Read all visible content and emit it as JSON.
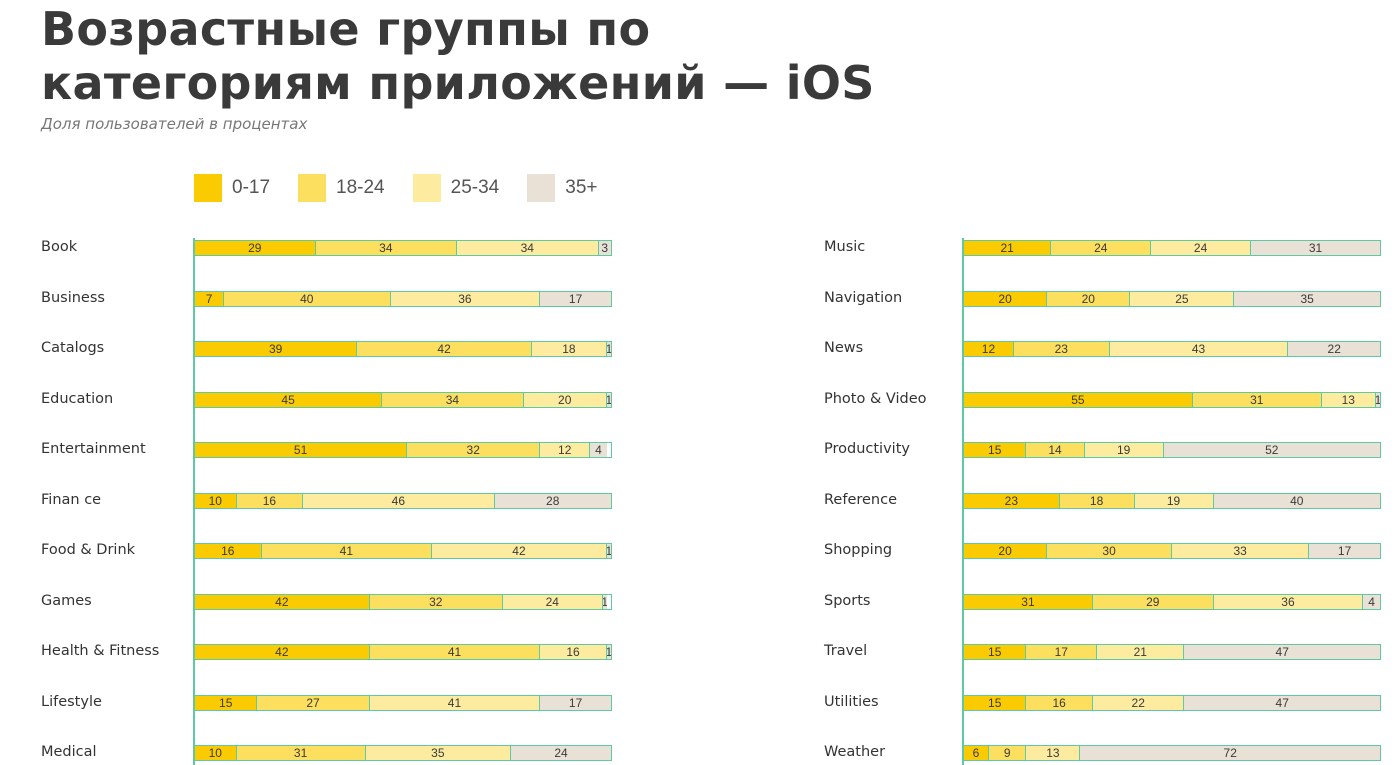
{
  "title": "Возрастные группы по категориям приложений — iOS",
  "subtitle": "Доля пользователей в процентах",
  "colors": {
    "0-17": "#facb00",
    "18-24": "#fcdf5f",
    "25-34": "#fdeca0",
    "35+": "#e9e1d6",
    "border": "#5fc9a4"
  },
  "chart_data": {
    "type": "bar",
    "stacked": true,
    "orientation": "horizontal",
    "title": "Возрастные группы по категориям приложений — iOS",
    "subtitle": "Доля пользователей в процентах",
    "legend": [
      "0-17",
      "18-24",
      "25-34",
      "35+"
    ],
    "legend_position": "top-left",
    "xlim": [
      0,
      100
    ],
    "panels": [
      {
        "categories": [
          "Book",
          "Business",
          "Catalogs",
          "Education",
          "Entertainment",
          "Finan ce",
          "Food & Drink",
          "Games",
          "Health & Fitness",
          "Lifestyle",
          "Medical"
        ],
        "series": [
          {
            "name": "0-17",
            "values": [
              29,
              7,
              39,
              45,
              51,
              10,
              16,
              42,
              42,
              15,
              10
            ]
          },
          {
            "name": "18-24",
            "values": [
              34,
              40,
              42,
              34,
              32,
              16,
              41,
              32,
              41,
              27,
              31
            ]
          },
          {
            "name": "25-34",
            "values": [
              34,
              36,
              18,
              20,
              12,
              46,
              42,
              24,
              16,
              41,
              35
            ]
          },
          {
            "name": "35+",
            "values": [
              3,
              17,
              1,
              1,
              4,
              28,
              1,
              1,
              1,
              17,
              24
            ]
          }
        ]
      },
      {
        "categories": [
          "Music",
          "Navigation",
          "News",
          "Photo & Video",
          "Productivity",
          "Reference",
          "Shopping",
          "Sports",
          "Travel",
          "Utilities",
          "Weather"
        ],
        "series": [
          {
            "name": "0-17",
            "values": [
              21,
              20,
              12,
              55,
              15,
              23,
              20,
              31,
              15,
              15,
              6
            ]
          },
          {
            "name": "18-24",
            "values": [
              24,
              20,
              23,
              31,
              14,
              18,
              30,
              29,
              17,
              16,
              9
            ]
          },
          {
            "name": "25-34",
            "values": [
              24,
              25,
              43,
              13,
              19,
              19,
              33,
              36,
              21,
              22,
              13
            ]
          },
          {
            "name": "35+",
            "values": [
              31,
              35,
              22,
              1,
              52,
              40,
              17,
              4,
              47,
              47,
              72
            ]
          }
        ]
      }
    ]
  }
}
